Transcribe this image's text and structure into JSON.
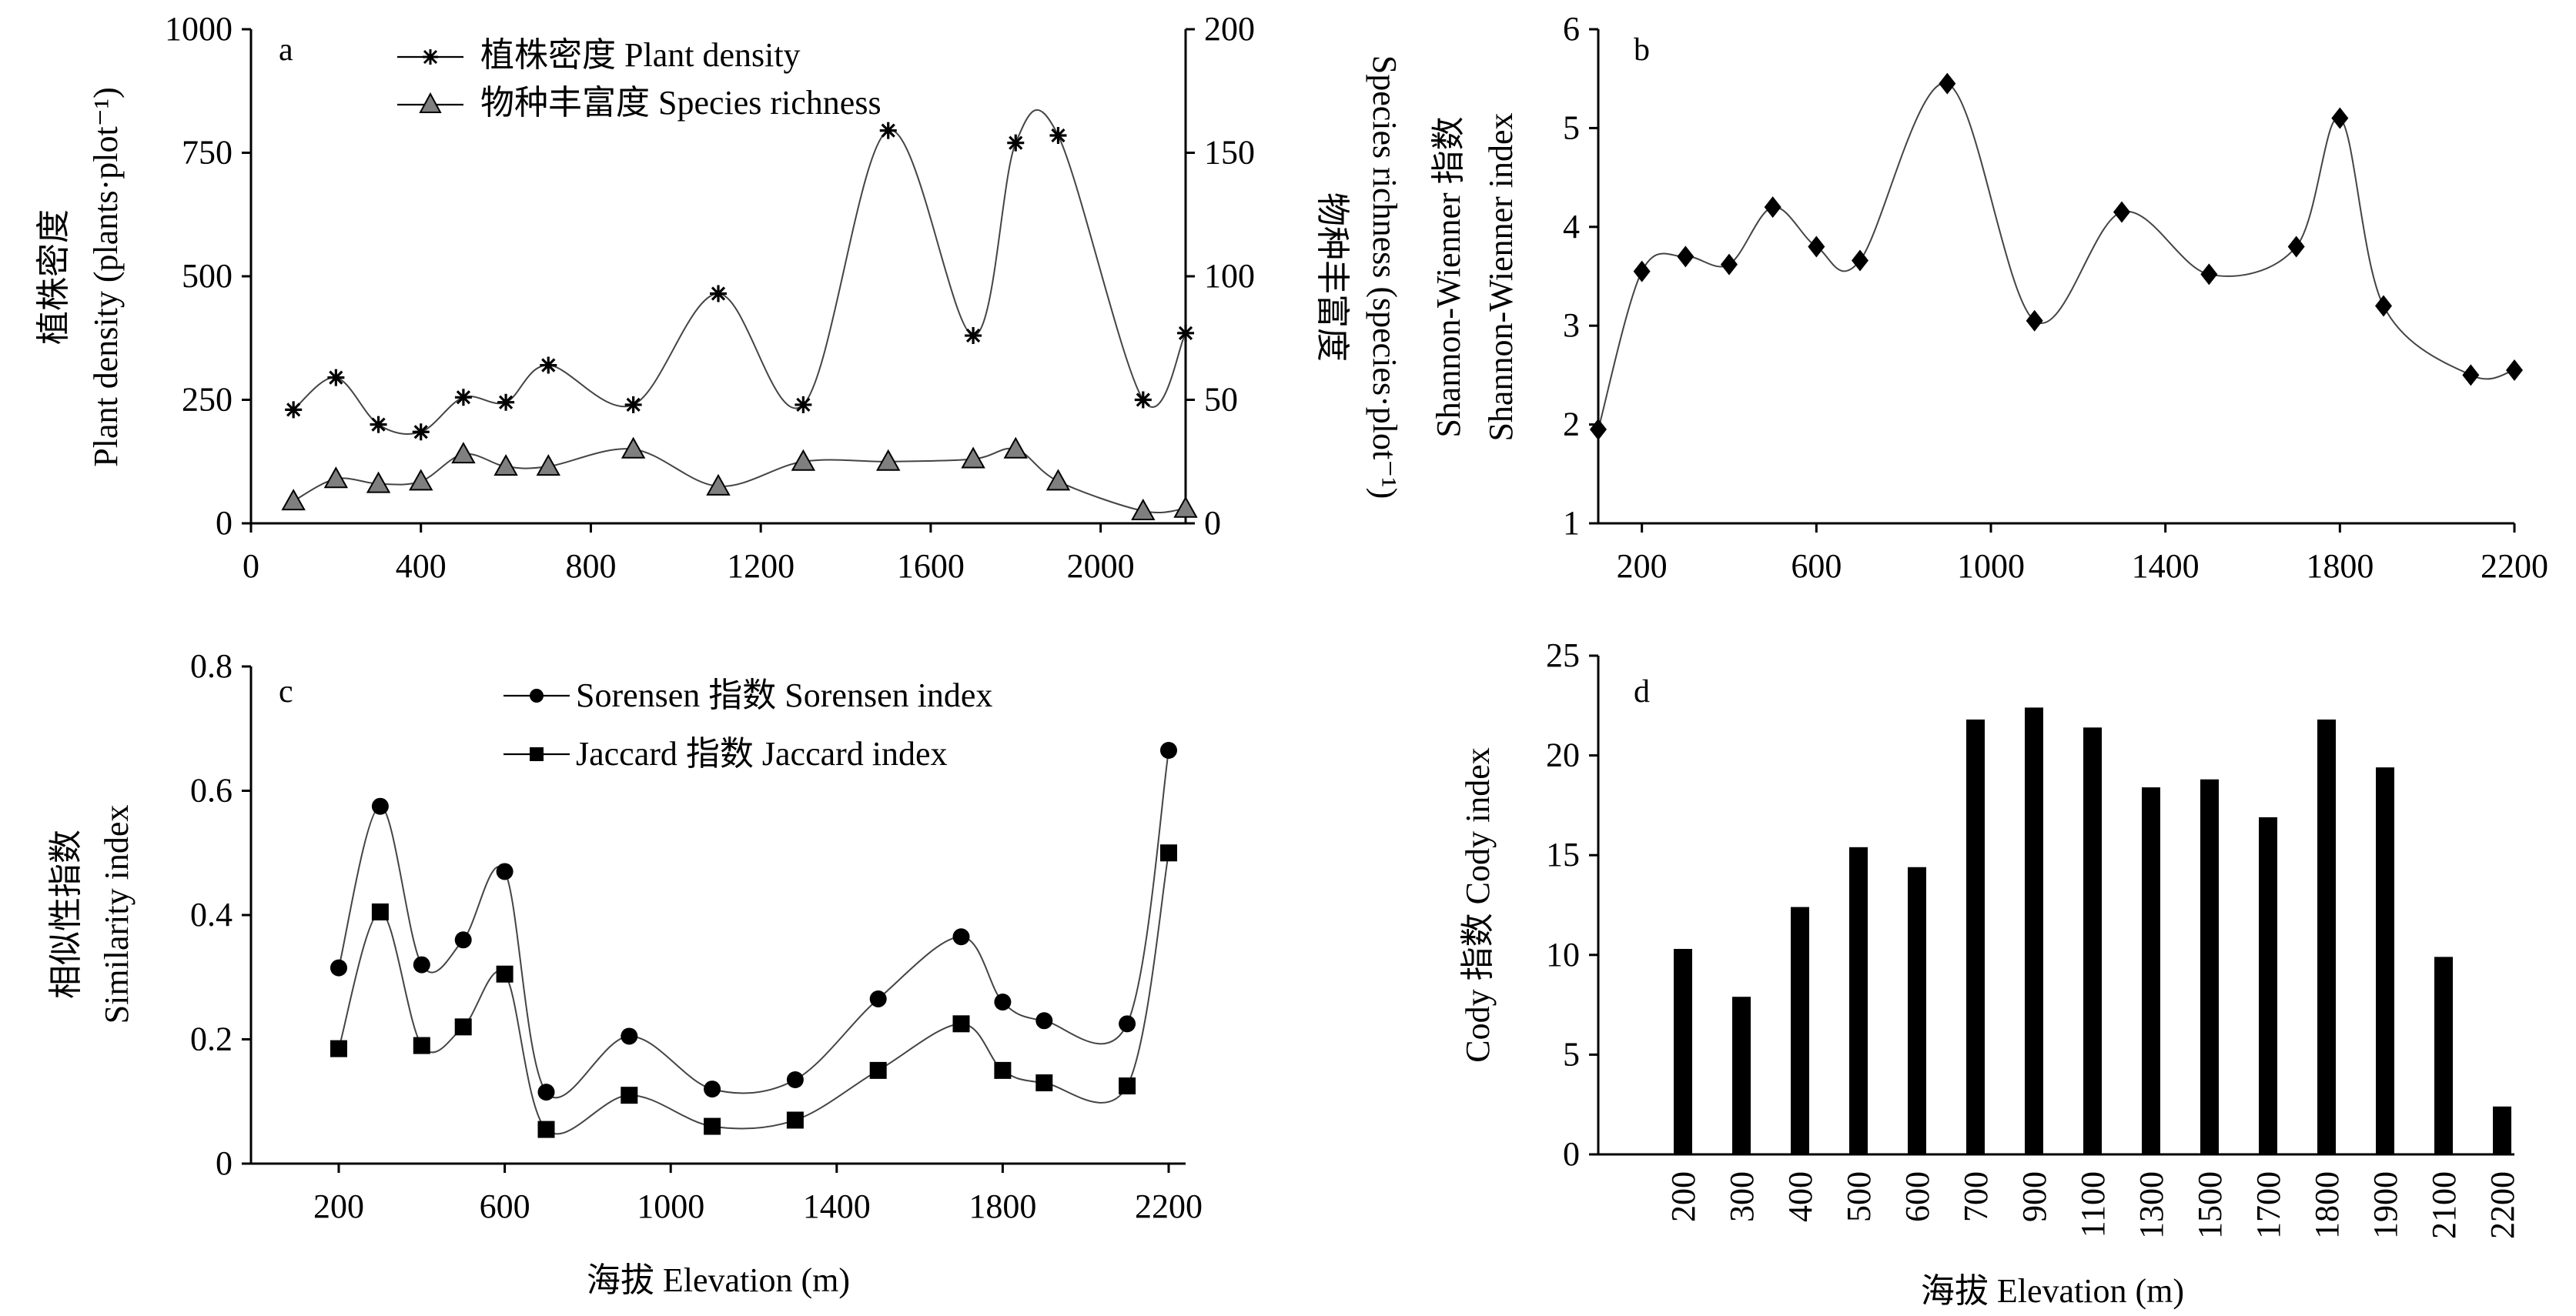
{
  "panel_tags": {
    "a": "a",
    "b": "b",
    "c": "c",
    "d": "d"
  },
  "axis_titles": {
    "a_left_cn": "植株密度",
    "a_left_en": "Plant density (plants·plot⁻¹)",
    "a_right_cn": "物种丰富度",
    "a_right_en": "Species richness (species·plot⁻¹)",
    "b_left_cn": "Shannon-Wienner 指数",
    "b_left_en": "Shannon-Wienner index",
    "c_left_cn": "相似性指数",
    "c_left_en": "Similarity index",
    "c_x": "海拔 Elevation (m)",
    "d_left": "Cody 指数 Cody index",
    "d_x": "海拔 Elevation (m)"
  },
  "legends": {
    "a_plant": "植株密度 Plant density",
    "a_species": "物种丰富度 Species richness",
    "c_sorensen": "Sorensen 指数 Sorensen index",
    "c_jaccard": "Jaccard 指数 Jaccard  index"
  },
  "ticks": {
    "a_x": [
      "0",
      "400",
      "800",
      "1200",
      "1600",
      "2000"
    ],
    "a_y_left": [
      "0",
      "250",
      "500",
      "750",
      "1000"
    ],
    "a_y_right": [
      "0",
      "50",
      "100",
      "150",
      "200"
    ],
    "b_x": [
      "200",
      "600",
      "1000",
      "1400",
      "1800",
      "2200"
    ],
    "b_y": [
      "1",
      "2",
      "3",
      "4",
      "5",
      "6"
    ],
    "c_x": [
      "200",
      "600",
      "1000",
      "1400",
      "1800",
      "2200"
    ],
    "c_y": [
      "0",
      "0.2",
      "0.4",
      "0.6",
      "0.8"
    ],
    "d_y": [
      "0",
      "5",
      "10",
      "15",
      "20",
      "25"
    ],
    "d_x": [
      "200",
      "300",
      "400",
      "500",
      "600",
      "700",
      "900",
      "1100",
      "1300",
      "1500",
      "1700",
      "1800",
      "1900",
      "2100",
      "2200"
    ]
  },
  "chart_data": [
    {
      "panel": "a",
      "type": "line",
      "xlim": [
        0,
        2200
      ],
      "ylim_left": [
        0,
        1000
      ],
      "ylim_right": [
        0,
        200
      ],
      "series": [
        {
          "name": "植株密度 Plant density",
          "axis": "left",
          "marker": "asterisk",
          "x": [
            100,
            200,
            300,
            400,
            500,
            600,
            700,
            900,
            1100,
            1300,
            1500,
            1700,
            1800,
            1900,
            2100,
            2200
          ],
          "values": [
            230,
            295,
            200,
            185,
            255,
            245,
            320,
            240,
            465,
            240,
            795,
            380,
            770,
            785,
            250,
            385
          ]
        },
        {
          "name": "物种丰富度 Species richness",
          "axis": "right",
          "marker": "triangle",
          "x": [
            100,
            200,
            300,
            400,
            500,
            600,
            700,
            900,
            1100,
            1300,
            1500,
            1700,
            1800,
            1900,
            2100,
            2200
          ],
          "values": [
            9,
            18,
            16,
            17,
            28,
            23,
            23,
            30,
            15,
            25,
            25,
            26,
            30,
            17,
            5,
            6
          ]
        }
      ]
    },
    {
      "panel": "b",
      "type": "line",
      "ylabel": "Shannon-Wienner index",
      "xlim": [
        100,
        2200
      ],
      "ylim": [
        1,
        6
      ],
      "series": [
        {
          "marker": "diamond",
          "x": [
            100,
            200,
            300,
            400,
            500,
            600,
            700,
            900,
            1100,
            1300,
            1500,
            1700,
            1800,
            1900,
            2100,
            2200
          ],
          "values": [
            1.95,
            3.55,
            3.7,
            3.62,
            4.2,
            3.8,
            3.66,
            5.45,
            3.05,
            4.15,
            3.52,
            3.8,
            5.1,
            3.2,
            2.5,
            2.55
          ]
        }
      ]
    },
    {
      "panel": "c",
      "type": "line",
      "xlabel": "海拔 Elevation (m)",
      "ylabel": "Similarity index",
      "xlim": [
        0,
        2200
      ],
      "ylim": [
        0,
        0.8
      ],
      "series": [
        {
          "name": "Sorensen 指数 Sorensen index",
          "marker": "circle",
          "x": [
            200,
            300,
            400,
            500,
            600,
            700,
            900,
            1100,
            1300,
            1500,
            1700,
            1800,
            1900,
            2100,
            2200
          ],
          "values": [
            0.315,
            0.575,
            0.32,
            0.36,
            0.47,
            0.115,
            0.205,
            0.12,
            0.135,
            0.265,
            0.365,
            0.26,
            0.23,
            0.225,
            0.665
          ]
        },
        {
          "name": "Jaccard 指数 Jaccard  index",
          "marker": "square",
          "x": [
            200,
            300,
            400,
            500,
            600,
            700,
            900,
            1100,
            1300,
            1500,
            1700,
            1800,
            1900,
            2100,
            2200
          ],
          "values": [
            0.185,
            0.405,
            0.19,
            0.22,
            0.305,
            0.055,
            0.11,
            0.06,
            0.07,
            0.15,
            0.225,
            0.15,
            0.13,
            0.125,
            0.5
          ]
        }
      ]
    },
    {
      "panel": "d",
      "type": "bar",
      "xlabel": "海拔 Elevation (m)",
      "ylabel": "Cody index",
      "ylim": [
        0,
        25
      ],
      "categories": [
        "200",
        "300",
        "400",
        "500",
        "600",
        "700",
        "900",
        "1100",
        "1300",
        "1500",
        "1700",
        "1800",
        "1900",
        "2100",
        "2200"
      ],
      "values": [
        10.3,
        7.9,
        12.4,
        15.4,
        14.4,
        21.8,
        22.4,
        21.4,
        18.4,
        18.8,
        16.9,
        21.8,
        19.4,
        9.9,
        2.4
      ]
    }
  ]
}
